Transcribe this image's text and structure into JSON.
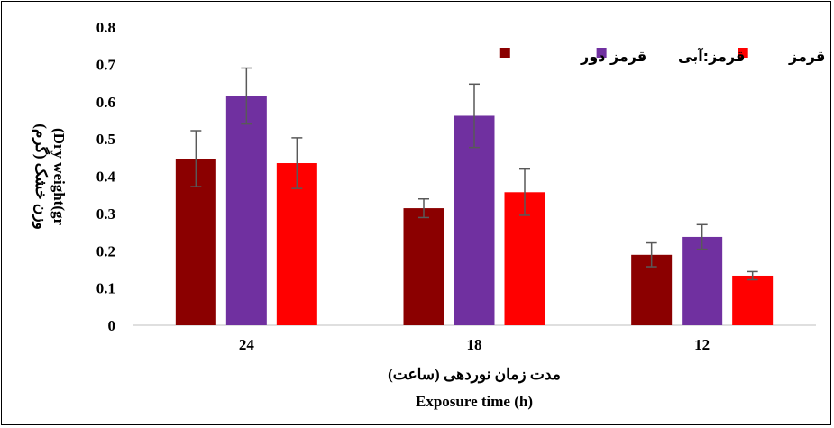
{
  "chart_data": {
    "type": "bar",
    "categories": [
      "24",
      "18",
      "12"
    ],
    "series": [
      {
        "name": "قرمز دور",
        "color": "#8b0000",
        "values": [
          0.447,
          0.314,
          0.189
        ],
        "errors": [
          0.075,
          0.025,
          0.032
        ]
      },
      {
        "name": "قرمز:آبی",
        "color": "#7030a0",
        "values": [
          0.615,
          0.562,
          0.237
        ],
        "errors": [
          0.075,
          0.085,
          0.033
        ]
      },
      {
        "name": "قرمز",
        "color": "#ff0000",
        "values": [
          0.435,
          0.357,
          0.133
        ],
        "errors": [
          0.068,
          0.062,
          0.011
        ]
      }
    ],
    "yticks": [
      "0",
      "0.1",
      "0.2",
      "0.3",
      "0.4",
      "0.5",
      "0.6",
      "0.7",
      "0.8"
    ],
    "ylim": [
      0,
      0.8
    ],
    "xlabel_fa": "مدت زمان نوردهی (ساعت)",
    "xlabel_en": "Exposure time (h)",
    "ylabel_fa": "وزن خشک (گرم)",
    "ylabel_en": "(Dry weight(gr",
    "legend_position": "top-right",
    "grid": false
  }
}
